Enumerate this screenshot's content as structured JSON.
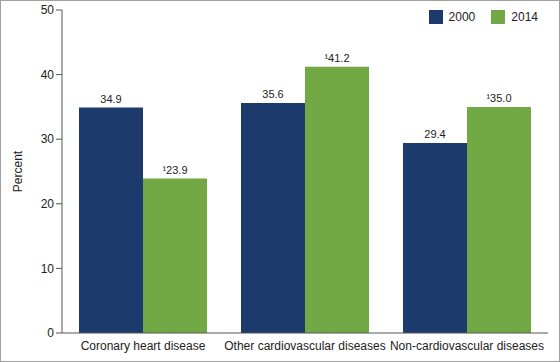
{
  "chart_data": {
    "type": "bar",
    "categories": [
      "Coronary heart disease",
      "Other cardiovascular diseases",
      "Non-cardiovascular diseases"
    ],
    "series": [
      {
        "name": "2000",
        "color": "#1c3a6b",
        "values": [
          34.9,
          35.6,
          29.4
        ]
      },
      {
        "name": "2014",
        "color": "#72a945",
        "values": [
          23.9,
          41.2,
          35.0
        ],
        "value_labels": [
          "¹23.9",
          "¹41.2",
          "¹35.0"
        ]
      }
    ],
    "y_label": "Percent",
    "ylim": [
      0,
      50
    ],
    "yticks": [
      0,
      10,
      20,
      30,
      40,
      50
    ],
    "grid": false,
    "legend": "upper right",
    "data_labels": true
  }
}
